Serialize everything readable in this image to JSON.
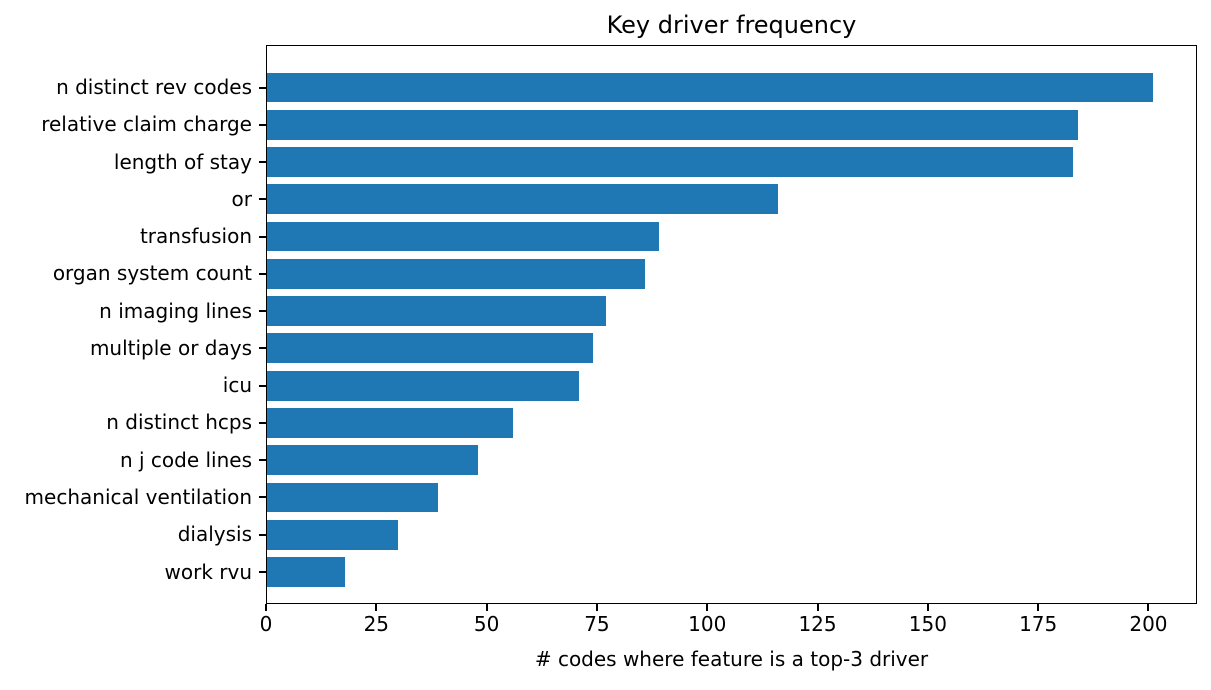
{
  "chart_data": {
    "type": "bar",
    "orientation": "horizontal",
    "title": "Key driver frequency",
    "xlabel": "# codes where feature is a top-3 driver",
    "ylabel": "",
    "categories": [
      "n distinct rev codes",
      "relative claim charge",
      "length of stay",
      "or",
      "transfusion",
      "organ system count",
      "n imaging lines",
      "multiple or days",
      "icu",
      "n distinct hcps",
      "n j code lines",
      "mechanical ventilation",
      "dialysis",
      "work rvu"
    ],
    "values": [
      201,
      184,
      183,
      116,
      89,
      86,
      77,
      74,
      71,
      56,
      48,
      39,
      30,
      18
    ],
    "xticks": [
      0,
      25,
      50,
      75,
      100,
      125,
      150,
      175,
      200
    ],
    "xlim": [
      0,
      211
    ],
    "bar_color": "#1f77b4",
    "grid": false,
    "legend": null,
    "background_color": "#ffffff"
  }
}
